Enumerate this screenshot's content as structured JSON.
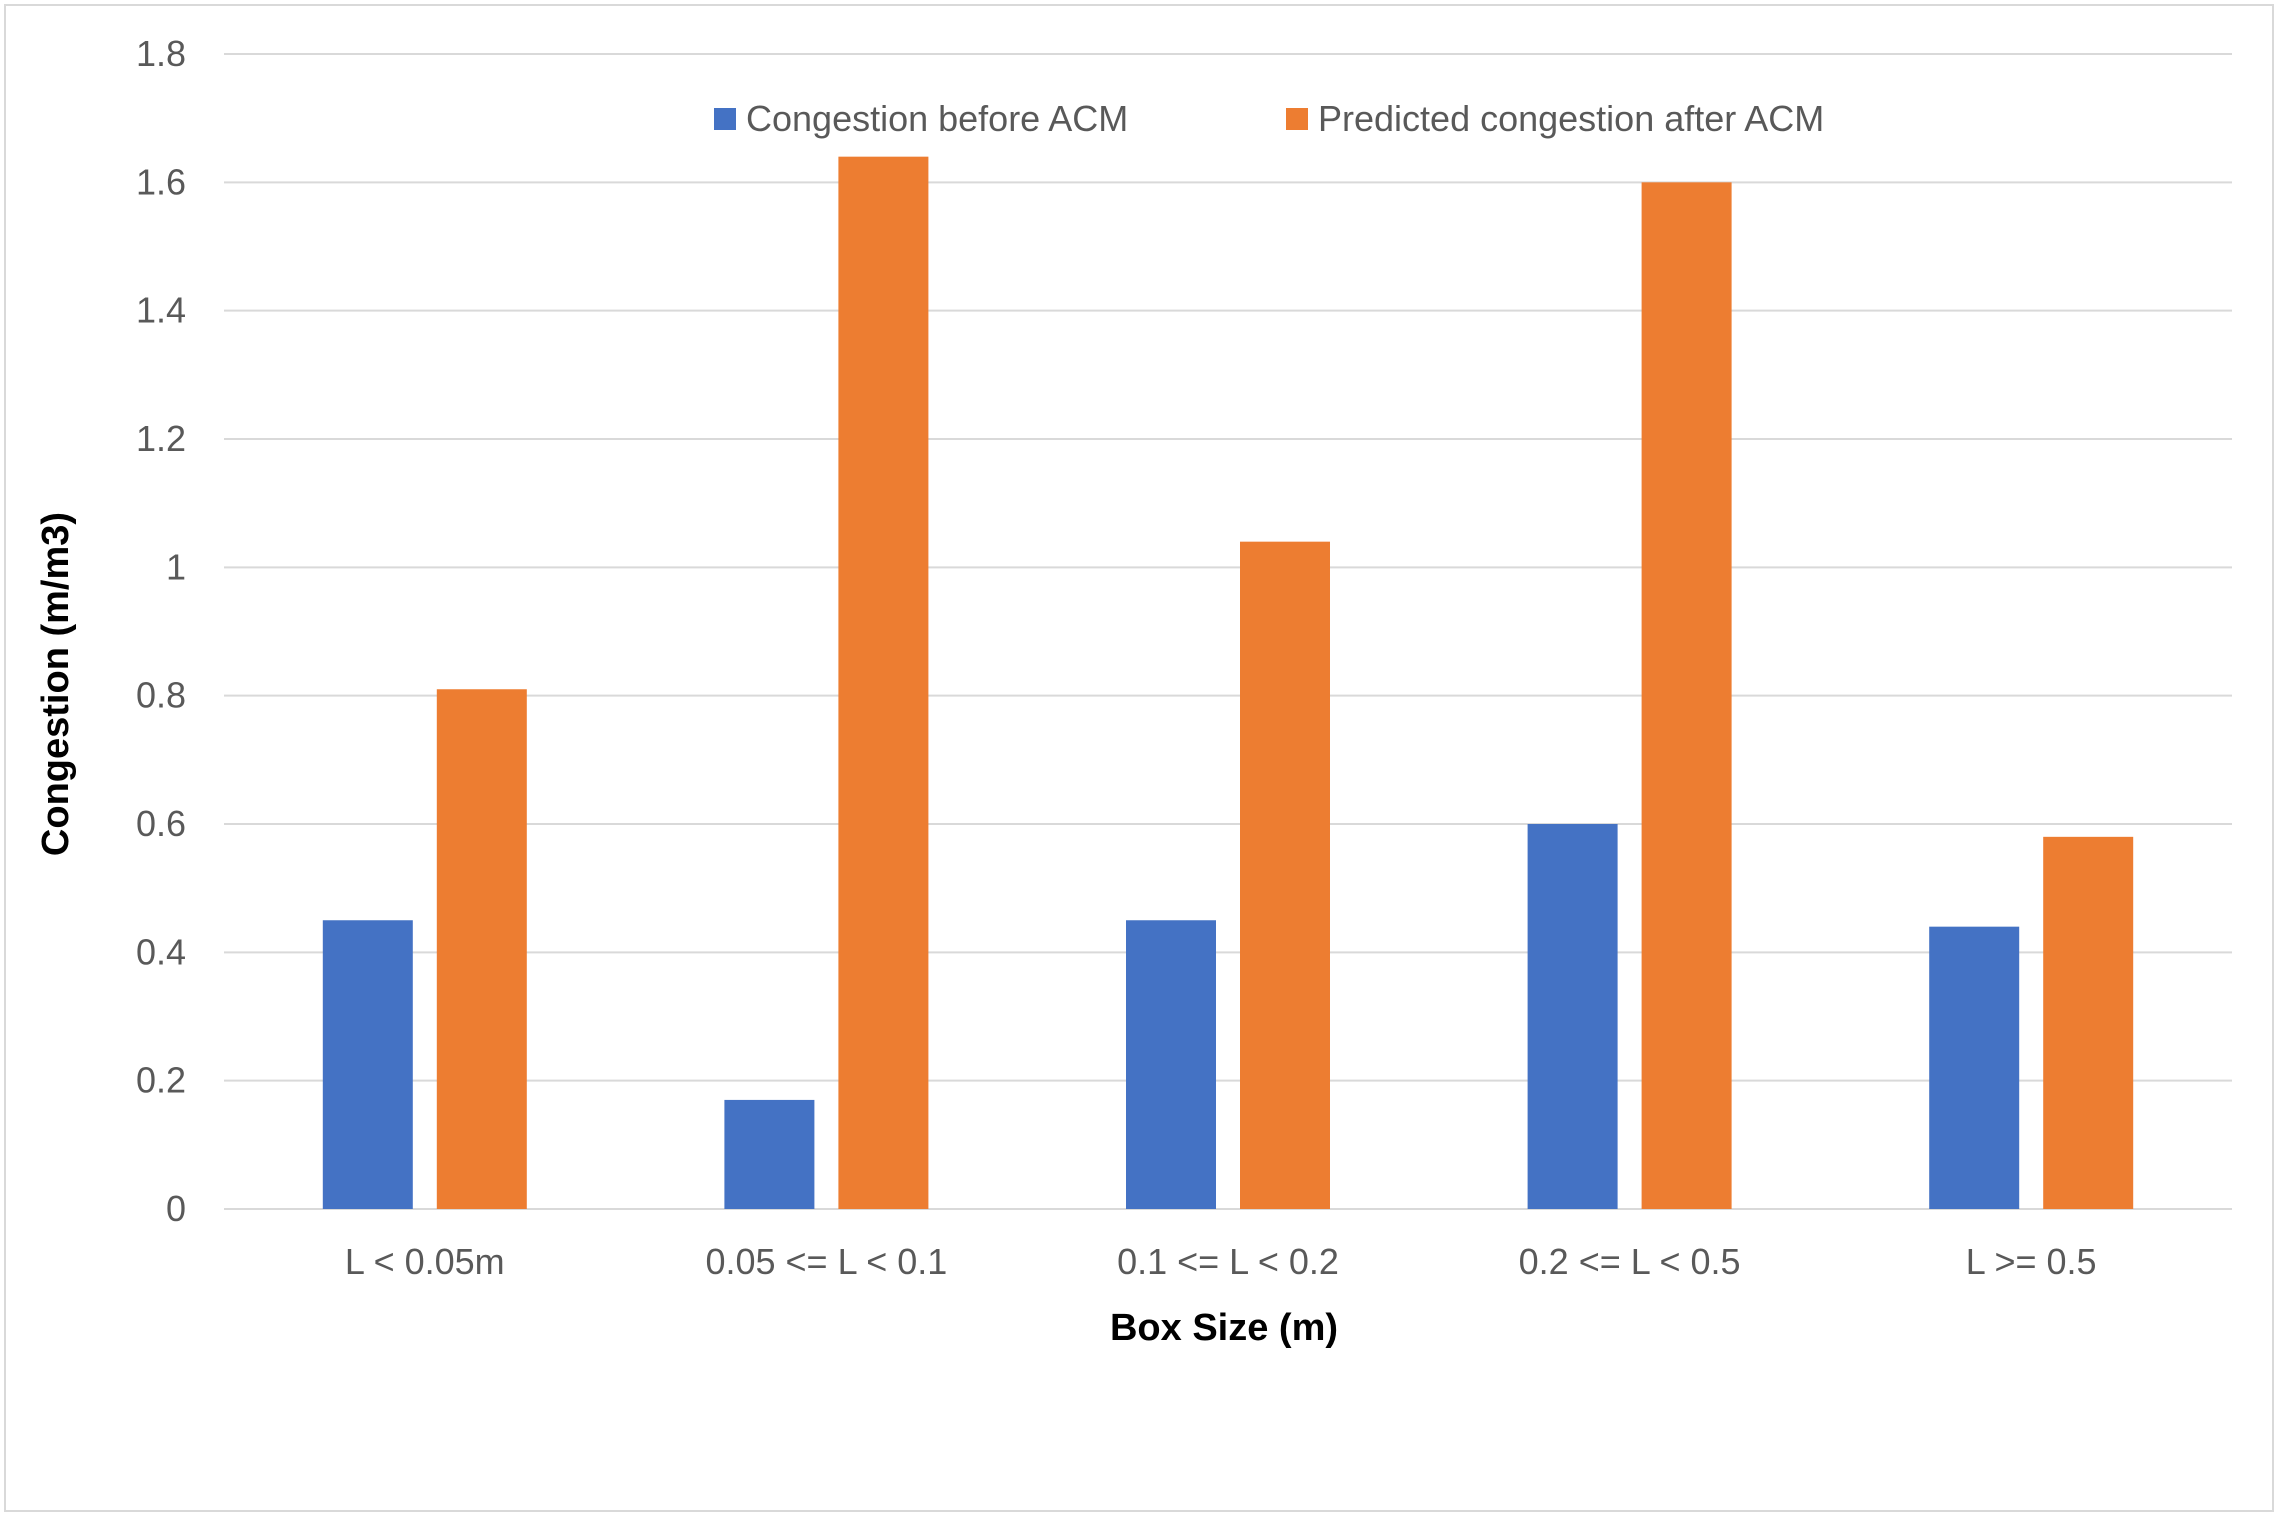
{
  "chart_data": {
    "type": "bar",
    "title": "",
    "xlabel": "Box Size (m)",
    "ylabel": "Congestion (m/m3)",
    "categories": [
      "L < 0.05m",
      "0.05 <= L < 0.1",
      "0.1 <= L < 0.2",
      "0.2 <= L < 0.5",
      "L >= 0.5"
    ],
    "series": [
      {
        "name": "Congestion before ACM",
        "color": "#4472C4",
        "values": [
          0.45,
          0.17,
          0.45,
          0.6,
          0.44
        ]
      },
      {
        "name": "Predicted congestion after ACM",
        "color": "#ED7D31",
        "values": [
          0.81,
          1.64,
          1.04,
          1.6,
          0.58
        ]
      }
    ],
    "ylim": [
      0,
      1.8
    ],
    "yticks": [
      "0",
      "0.2",
      "0.4",
      "0.6",
      "0.8",
      "1",
      "1.2",
      "1.4",
      "1.6",
      "1.8"
    ],
    "grid": true,
    "legend_position": "top"
  }
}
